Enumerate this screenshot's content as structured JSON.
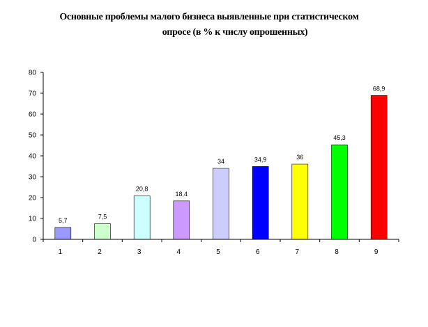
{
  "chart_data": {
    "type": "bar",
    "title_lines": [
      "Основные проблемы малого бизнеса выявленные при статистическом",
      "опросе (в % к числу опрошенных)"
    ],
    "categories": [
      "1",
      "2",
      "3",
      "4",
      "5",
      "6",
      "7",
      "8",
      "9"
    ],
    "values": [
      5.7,
      7.5,
      20.8,
      18.4,
      34,
      34.9,
      36,
      45.3,
      68.9
    ],
    "data_labels": [
      "5,7",
      "7,5",
      "20,8",
      "18,4",
      "34",
      "34,9",
      "36",
      "45,3",
      "68,9"
    ],
    "colors": [
      "#9999ff",
      "#ccffcc",
      "#ccffff",
      "#cc99ff",
      "#ccccff",
      "#0000ff",
      "#ffff00",
      "#00ff00",
      "#ff0000"
    ],
    "yticks": [
      "0",
      "10",
      "20",
      "30",
      "40",
      "50",
      "60",
      "70",
      "80"
    ],
    "ylim": [
      0,
      80
    ],
    "grid": false,
    "legend": "none"
  }
}
